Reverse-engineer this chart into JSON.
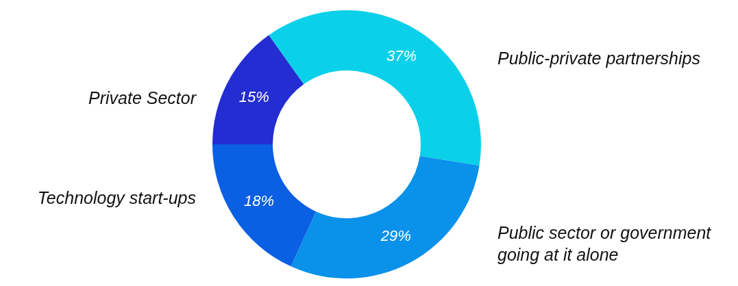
{
  "chart_data": {
    "type": "donut",
    "categories": [
      "Private Sector",
      "Public-private partnerships",
      "Public sector or government going at it alone",
      "Technology start-ups"
    ],
    "values": [
      15,
      37,
      29,
      18
    ],
    "colors": [
      "#232dd1",
      "#0bd0e9",
      "#0a91ea",
      "#0b5fe3"
    ],
    "value_labels": [
      "15%",
      "37%",
      "29%",
      "18%"
    ],
    "legend": false
  }
}
